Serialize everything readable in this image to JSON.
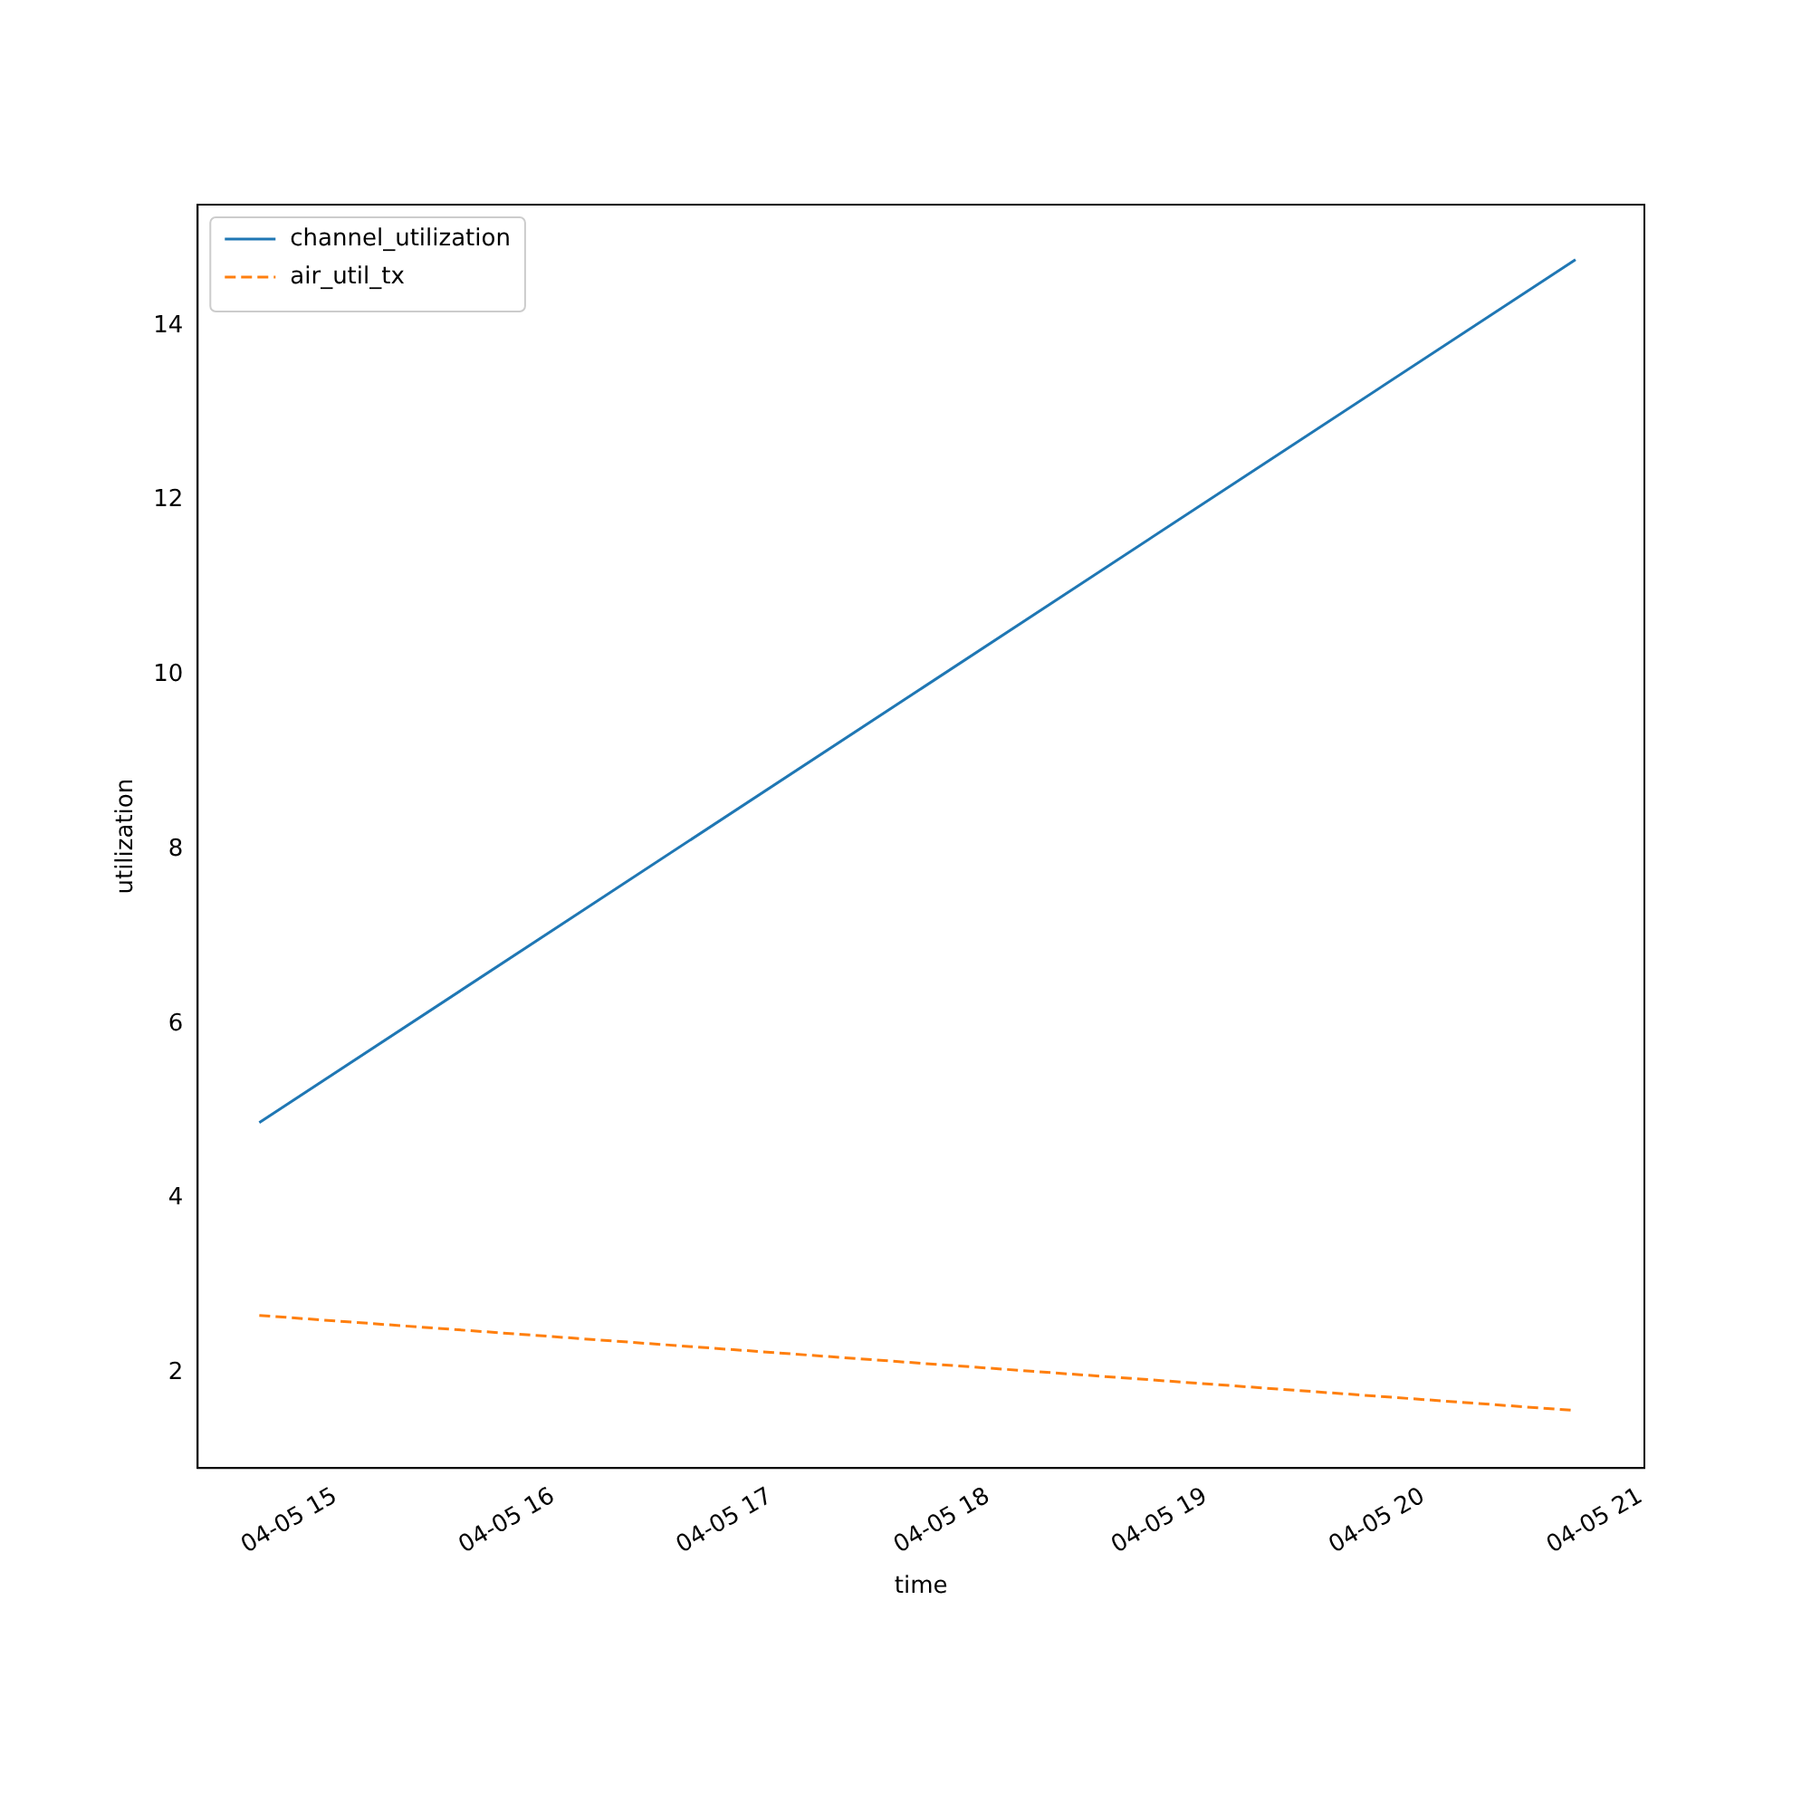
{
  "chart_data": {
    "type": "line",
    "xlabel": "time",
    "ylabel": "utilization",
    "x": [
      "--04-05T14:39",
      "--04-05T20:42"
    ],
    "series": [
      {
        "name": "channel_utilization",
        "color": "#1f77b4",
        "values": [
          4.87,
          14.76
        ],
        "line_style": "solid"
      },
      {
        "name": "air_util_tx",
        "color": "#ff7f0e",
        "values": [
          2.66,
          1.57
        ],
        "line_style": "dashed"
      }
    ],
    "xlim": [
      "--04-05T14:22",
      "--04-05T21:01"
    ],
    "xticks": [
      {
        "value": "--04-05T15:00",
        "label": "04-05 15"
      },
      {
        "value": "--04-05T16:00",
        "label": "04-05 16"
      },
      {
        "value": "--04-05T17:00",
        "label": "04-05 17"
      },
      {
        "value": "--04-05T18:00",
        "label": "04-05 18"
      },
      {
        "value": "--04-05T19:00",
        "label": "04-05 19"
      },
      {
        "value": "--04-05T20:00",
        "label": "04-05 20"
      },
      {
        "value": "--04-05T21:00",
        "label": "04-05 21"
      }
    ],
    "ylim": [
      0.91,
      15.39
    ],
    "yticks": [
      2,
      4,
      6,
      8,
      10,
      12,
      14
    ],
    "grid": false,
    "legend": "top left"
  }
}
